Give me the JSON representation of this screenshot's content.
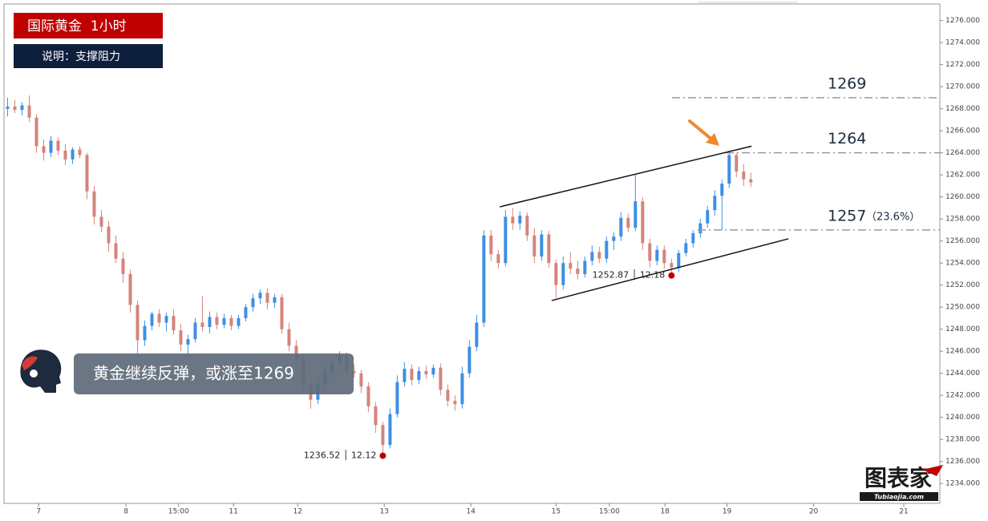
{
  "chart_data": {
    "type": "candlestick",
    "title": "国际黄金  1小时",
    "subtitle": "说明：支撑阻力",
    "headline": "黄金继续反弹，或涨至1269",
    "logo": "图表家",
    "logo_url": "Tubiaojia.com",
    "up_color": "#3d8fe6",
    "down_color": "#d4847c",
    "xlim": [
      -0.5,
      129.2
    ],
    "ylim": [
      1232.2,
      1277.5
    ],
    "xticks": [
      {
        "value": 4.3,
        "label": "7"
      },
      {
        "value": 16.4,
        "label": "8"
      },
      {
        "value": 23.7,
        "label": "15:00"
      },
      {
        "value": 31.3,
        "label": "11"
      },
      {
        "value": 40.2,
        "label": "12"
      },
      {
        "value": 52.2,
        "label": "13"
      },
      {
        "value": 64.2,
        "label": "14"
      },
      {
        "value": 76.0,
        "label": "15"
      },
      {
        "value": 83.4,
        "label": "15:00"
      },
      {
        "value": 91.1,
        "label": "18"
      },
      {
        "value": 99.7,
        "label": "19"
      },
      {
        "value": 111.7,
        "label": "20"
      },
      {
        "value": 124.2,
        "label": "21"
      }
    ],
    "yticks": [
      {
        "value": 1234,
        "label": "1234.000"
      },
      {
        "value": 1236,
        "label": "1236.000"
      },
      {
        "value": 1238,
        "label": "1238.000"
      },
      {
        "value": 1240,
        "label": "1240.000"
      },
      {
        "value": 1242,
        "label": "1242.000"
      },
      {
        "value": 1244,
        "label": "1244.000"
      },
      {
        "value": 1246,
        "label": "1246.000"
      },
      {
        "value": 1248,
        "label": "1248.000"
      },
      {
        "value": 1250,
        "label": "1250.000"
      },
      {
        "value": 1252,
        "label": "1252.000"
      },
      {
        "value": 1254,
        "label": "1254.000"
      },
      {
        "value": 1256,
        "label": "1256.000"
      },
      {
        "value": 1258,
        "label": "1258.000"
      },
      {
        "value": 1260,
        "label": "1260.000"
      },
      {
        "value": 1262,
        "label": "1262.000"
      },
      {
        "value": 1264,
        "label": "1264.000"
      },
      {
        "value": 1266,
        "label": "1266.000"
      },
      {
        "value": 1268,
        "label": "1268.000"
      },
      {
        "value": 1270,
        "label": "1270.000"
      },
      {
        "value": 1272,
        "label": "1272.000"
      },
      {
        "value": 1274,
        "label": "1274.000"
      },
      {
        "value": 1276,
        "label": "1276.000"
      }
    ],
    "ohlc": [
      [
        1268.0,
        1269.0,
        1267.3,
        1268.2
      ],
      [
        1268.2,
        1268.8,
        1267.6,
        1267.9
      ],
      [
        1267.9,
        1268.6,
        1267.4,
        1268.3
      ],
      [
        1268.3,
        1269.2,
        1266.8,
        1267.2
      ],
      [
        1267.2,
        1267.5,
        1264.0,
        1264.6
      ],
      [
        1264.6,
        1265.2,
        1263.3,
        1264.0
      ],
      [
        1264.0,
        1265.5,
        1263.6,
        1265.1
      ],
      [
        1265.1,
        1265.4,
        1263.8,
        1264.2
      ],
      [
        1264.2,
        1264.8,
        1262.9,
        1263.4
      ],
      [
        1263.4,
        1264.5,
        1263.0,
        1264.3
      ],
      [
        1264.3,
        1264.6,
        1263.5,
        1263.8
      ],
      [
        1263.8,
        1264.0,
        1259.8,
        1260.5
      ],
      [
        1260.5,
        1261.0,
        1257.5,
        1258.2
      ],
      [
        1258.2,
        1258.8,
        1256.8,
        1257.3
      ],
      [
        1257.3,
        1257.8,
        1255.0,
        1255.8
      ],
      [
        1255.8,
        1256.5,
        1254.0,
        1254.4
      ],
      [
        1254.4,
        1255.0,
        1252.2,
        1253.0
      ],
      [
        1253.0,
        1253.4,
        1249.5,
        1250.2
      ],
      [
        1250.2,
        1250.6,
        1245.8,
        1247.0
      ],
      [
        1247.0,
        1248.8,
        1246.5,
        1248.3
      ],
      [
        1248.3,
        1249.6,
        1247.9,
        1249.4
      ],
      [
        1249.4,
        1249.8,
        1248.2,
        1248.6
      ],
      [
        1248.6,
        1249.5,
        1247.8,
        1249.2
      ],
      [
        1249.2,
        1249.8,
        1247.5,
        1247.9
      ],
      [
        1247.9,
        1248.5,
        1246.0,
        1246.6
      ],
      [
        1246.6,
        1247.5,
        1245.6,
        1247.1
      ],
      [
        1247.1,
        1249.0,
        1246.8,
        1248.6
      ],
      [
        1248.6,
        1251.0,
        1247.8,
        1248.2
      ],
      [
        1248.2,
        1249.6,
        1247.6,
        1249.1
      ],
      [
        1249.1,
        1249.5,
        1248.0,
        1248.4
      ],
      [
        1248.4,
        1249.4,
        1248.1,
        1249.0
      ],
      [
        1249.0,
        1249.3,
        1247.9,
        1248.3
      ],
      [
        1248.3,
        1249.3,
        1248.0,
        1249.0
      ],
      [
        1249.0,
        1250.3,
        1248.7,
        1250.0
      ],
      [
        1250.0,
        1251.2,
        1249.6,
        1250.8
      ],
      [
        1250.8,
        1251.6,
        1250.3,
        1251.3
      ],
      [
        1251.3,
        1251.7,
        1249.8,
        1250.4
      ],
      [
        1250.4,
        1251.2,
        1249.9,
        1250.9
      ],
      [
        1250.9,
        1251.2,
        1247.6,
        1248.0
      ],
      [
        1248.0,
        1248.6,
        1246.0,
        1246.5
      ],
      [
        1246.5,
        1247.0,
        1244.8,
        1245.3
      ],
      [
        1245.3,
        1245.8,
        1242.5,
        1243.0
      ],
      [
        1243.0,
        1243.5,
        1240.8,
        1241.6
      ],
      [
        1241.6,
        1243.5,
        1241.2,
        1243.0
      ],
      [
        1243.0,
        1244.6,
        1242.6,
        1244.2
      ],
      [
        1244.2,
        1245.5,
        1243.6,
        1245.0
      ],
      [
        1245.0,
        1246.0,
        1244.2,
        1245.6
      ],
      [
        1245.6,
        1245.9,
        1243.8,
        1244.2
      ],
      [
        1244.2,
        1244.8,
        1243.6,
        1244.0
      ],
      [
        1244.0,
        1244.3,
        1242.2,
        1242.8
      ],
      [
        1242.8,
        1243.2,
        1240.5,
        1241.0
      ],
      [
        1241.0,
        1241.4,
        1238.6,
        1239.3
      ],
      [
        1239.3,
        1239.6,
        1236.5,
        1237.5
      ],
      [
        1237.5,
        1240.8,
        1237.2,
        1240.3
      ],
      [
        1240.3,
        1243.8,
        1240.0,
        1243.2
      ],
      [
        1243.2,
        1245.0,
        1242.8,
        1244.4
      ],
      [
        1244.4,
        1244.8,
        1242.9,
        1243.4
      ],
      [
        1243.4,
        1244.6,
        1243.0,
        1244.2
      ],
      [
        1244.2,
        1244.7,
        1243.5,
        1243.9
      ],
      [
        1243.9,
        1244.8,
        1243.6,
        1244.5
      ],
      [
        1244.5,
        1244.9,
        1242.0,
        1242.5
      ],
      [
        1242.5,
        1243.0,
        1241.0,
        1241.5
      ],
      [
        1241.5,
        1242.0,
        1240.6,
        1241.2
      ],
      [
        1241.2,
        1244.6,
        1240.8,
        1244.0
      ],
      [
        1244.0,
        1247.0,
        1243.6,
        1246.4
      ],
      [
        1246.4,
        1249.3,
        1246.0,
        1248.6
      ],
      [
        1248.6,
        1257.0,
        1248.2,
        1256.5
      ],
      [
        1256.5,
        1257.0,
        1254.2,
        1254.8
      ],
      [
        1254.8,
        1255.2,
        1253.5,
        1254.0
      ],
      [
        1254.0,
        1258.8,
        1253.7,
        1258.2
      ],
      [
        1258.2,
        1259.0,
        1257.0,
        1257.6
      ],
      [
        1257.6,
        1258.7,
        1257.0,
        1258.3
      ],
      [
        1258.3,
        1258.6,
        1256.0,
        1256.5
      ],
      [
        1256.5,
        1257.2,
        1254.0,
        1254.6
      ],
      [
        1254.6,
        1257.0,
        1254.2,
        1256.6
      ],
      [
        1256.6,
        1256.9,
        1253.6,
        1254.0
      ],
      [
        1254.0,
        1254.3,
        1250.8,
        1252.0
      ],
      [
        1252.0,
        1254.6,
        1251.6,
        1254.0
      ],
      [
        1254.0,
        1255.0,
        1253.0,
        1253.5
      ],
      [
        1253.5,
        1254.2,
        1252.5,
        1253.0
      ],
      [
        1253.0,
        1254.6,
        1252.7,
        1254.2
      ],
      [
        1254.2,
        1255.6,
        1253.8,
        1255.0
      ],
      [
        1255.0,
        1255.5,
        1254.0,
        1254.4
      ],
      [
        1254.4,
        1256.4,
        1254.0,
        1256.0
      ],
      [
        1256.0,
        1256.8,
        1255.2,
        1256.4
      ],
      [
        1256.4,
        1258.6,
        1256.0,
        1258.1
      ],
      [
        1258.1,
        1258.5,
        1256.8,
        1257.2
      ],
      [
        1257.2,
        1262.0,
        1256.9,
        1259.6
      ],
      [
        1259.6,
        1260.0,
        1255.2,
        1255.8
      ],
      [
        1255.8,
        1256.2,
        1253.6,
        1254.2
      ],
      [
        1254.2,
        1255.6,
        1253.8,
        1255.2
      ],
      [
        1255.2,
        1255.6,
        1253.5,
        1254.0
      ],
      [
        1254.0,
        1254.4,
        1253.1,
        1253.6
      ],
      [
        1253.6,
        1255.2,
        1253.2,
        1254.9
      ],
      [
        1254.9,
        1256.2,
        1254.6,
        1255.8
      ],
      [
        1255.8,
        1257.0,
        1255.4,
        1256.7
      ],
      [
        1256.7,
        1258.0,
        1256.3,
        1257.6
      ],
      [
        1257.6,
        1259.2,
        1257.2,
        1258.8
      ],
      [
        1258.8,
        1260.6,
        1258.3,
        1260.1
      ],
      [
        1260.1,
        1261.6,
        1257.0,
        1261.2
      ],
      [
        1261.2,
        1264.2,
        1260.8,
        1263.8
      ],
      [
        1263.8,
        1264.0,
        1261.8,
        1262.3
      ],
      [
        1262.3,
        1263.0,
        1261.0,
        1261.6
      ],
      [
        1261.6,
        1262.2,
        1260.9,
        1261.3
      ]
    ],
    "levels": [
      {
        "value": 1269,
        "label": "1269"
      },
      {
        "value": 1264,
        "label": "1264"
      },
      {
        "value": 1257,
        "label": "1257",
        "note": "（23.6%）"
      }
    ],
    "trendlines": [
      {
        "x": [
          68.2,
          103.1
        ],
        "y": [
          1259.1,
          1264.6
        ]
      },
      {
        "x": [
          75.4,
          108.2
        ],
        "y": [
          1250.6,
          1256.2
        ]
      }
    ],
    "annotations": [
      {
        "x": 52,
        "y": 1236.52,
        "label": "1236.52 │ 12.12"
      },
      {
        "x": 92,
        "y": 1252.87,
        "label": "1252.87 │ 12.18"
      }
    ]
  }
}
